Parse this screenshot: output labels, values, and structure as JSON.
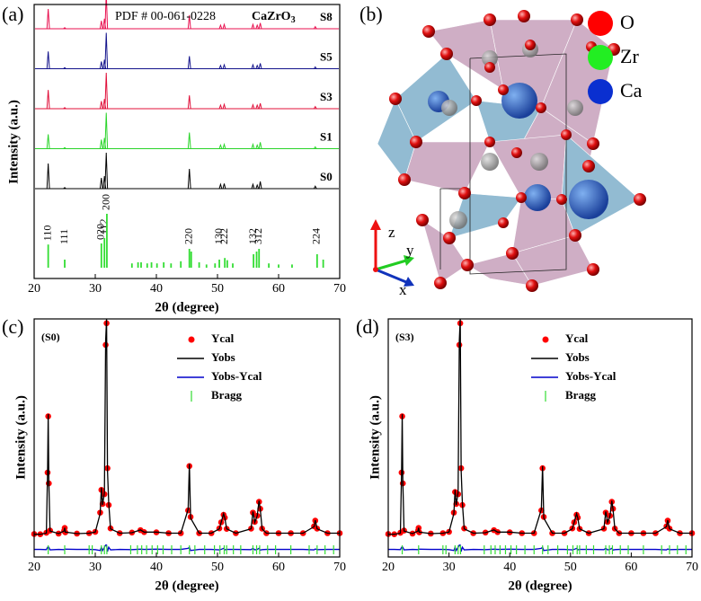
{
  "chart_data": [
    {
      "type": "stick",
      "label": "(a)",
      "annotation": "PDF # 00-061-0228",
      "formula": {
        "text": "CaZrO",
        "sub": "3"
      },
      "xlabel": "2θ (degree)",
      "ylabel": "Intensity (a.u.)",
      "xlim": [
        20,
        70
      ],
      "xticks": [
        20,
        30,
        40,
        50,
        60,
        70
      ],
      "x": [
        22.3,
        25.0,
        31.0,
        31.5,
        31.8,
        45.4,
        50.5,
        51.1,
        55.8,
        56.5,
        57.0,
        66.0
      ],
      "series": [
        {
          "name": "S8",
          "color": "#e8104f",
          "values": [
            55,
            3,
            22,
            28,
            100,
            38,
            10,
            12,
            12,
            10,
            16,
            6
          ]
        },
        {
          "name": "S5",
          "color": "#14148c",
          "values": [
            48,
            3,
            20,
            25,
            100,
            35,
            9,
            11,
            11,
            9,
            15,
            5
          ]
        },
        {
          "name": "S3",
          "color": "#e0103a",
          "values": [
            52,
            3,
            21,
            27,
            100,
            37,
            10,
            12,
            11,
            10,
            15,
            6
          ]
        },
        {
          "name": "S1",
          "color": "#2bd42b",
          "values": [
            40,
            3,
            25,
            30,
            100,
            45,
            10,
            12,
            12,
            10,
            18,
            5
          ]
        },
        {
          "name": "S0",
          "color": "#000000",
          "values": [
            70,
            3,
            30,
            35,
            100,
            55,
            12,
            14,
            12,
            10,
            20,
            7
          ]
        }
      ],
      "reference": {
        "color": "#33dd33",
        "x": [
          22.3,
          25.0,
          31.0,
          31.5,
          31.9,
          36.0,
          37.0,
          37.5,
          38.5,
          39.2,
          40.1,
          41.2,
          42.4,
          44.0,
          45.4,
          45.7,
          47.0,
          48.2,
          49.6,
          50.3,
          51.2,
          51.6,
          52.5,
          55.9,
          56.4,
          56.8,
          58.4,
          60.0,
          62.2,
          66.3,
          67.3
        ],
        "values": [
          43,
          15,
          45,
          55,
          100,
          8,
          10,
          10,
          8,
          10,
          8,
          10,
          8,
          12,
          35,
          30,
          10,
          6,
          8,
          15,
          18,
          14,
          8,
          25,
          30,
          35,
          8,
          6,
          6,
          25,
          15
        ],
        "labels": [
          "110",
          "111",
          "020",
          "112",
          "200",
          null,
          null,
          null,
          null,
          null,
          null,
          null,
          null,
          null,
          "220",
          null,
          null,
          null,
          null,
          "130",
          "222",
          null,
          null,
          "132",
          null,
          "312",
          null,
          null,
          null,
          "224",
          null
        ]
      }
    },
    {
      "type": "rietveld",
      "label": "(c)",
      "sample": "(S0)",
      "xlabel": "2θ (degree)",
      "ylabel": "Intensity (a.u.)",
      "xlim": [
        20,
        70
      ],
      "xticks": [
        20,
        30,
        40,
        50,
        60,
        70
      ],
      "ylim": [
        -10,
        100
      ],
      "x": [
        20,
        21,
        22,
        22.2,
        22.3,
        22.4,
        22.6,
        24,
        24.9,
        25,
        25.1,
        27,
        29,
        30,
        30.8,
        31.0,
        31.2,
        31.5,
        31.7,
        31.85,
        32.0,
        32.2,
        32.5,
        34,
        36,
        37.4,
        38,
        40,
        42,
        44,
        45.2,
        45.4,
        45.6,
        47,
        49,
        50.3,
        50.6,
        51.0,
        51.2,
        51.5,
        53,
        55.5,
        55.8,
        56.1,
        56.5,
        56.8,
        57.0,
        57.3,
        58,
        60,
        62,
        64,
        65.8,
        66.0,
        66.3,
        68,
        70
      ],
      "series": [
        {
          "name": "Ycal",
          "color": "#ff0000",
          "values": [
            0.6,
            0.5,
            1.2,
            29,
            55,
            24,
            2.2,
            0.8,
            2.1,
            3.4,
            1.4,
            0.8,
            1,
            1.6,
            10.5,
            21,
            14.5,
            19,
            88,
            98,
            31,
            14,
            3.2,
            1,
            1.3,
            2.4,
            1.5,
            1.4,
            1,
            1,
            11.5,
            32,
            8.5,
            1,
            1,
            3.2,
            6,
            9.5,
            8.2,
            3,
            1,
            3.1,
            10.5,
            6.2,
            9,
            15.5,
            12.3,
            3.1,
            1,
            1,
            1,
            1,
            4.2,
            6.8,
            3.1,
            1,
            1
          ]
        },
        {
          "name": "Yobs",
          "color": "#000000",
          "values": [
            0.5,
            0.5,
            1,
            30,
            56,
            25,
            2,
            0.8,
            2,
            3.5,
            1.5,
            0.8,
            1,
            1.5,
            10,
            22,
            14,
            20,
            90,
            100,
            30,
            15,
            3,
            1,
            1.2,
            2.5,
            1.5,
            1.5,
            1,
            1,
            12,
            33,
            8,
            1,
            1,
            3,
            6,
            10,
            8,
            3,
            1,
            3,
            11,
            6,
            9,
            16,
            12,
            3,
            1,
            1,
            1,
            1,
            4,
            7,
            3,
            1,
            1
          ]
        },
        {
          "name": "Yobs-Ycal",
          "color": "#0000cc",
          "values": [
            -6.5,
            -6.5,
            -6.6,
            -5.5,
            -5.5,
            -5.5,
            -6.7,
            -6.5,
            -6.6,
            -6.4,
            -6.4,
            -6.5,
            -6.5,
            -6.6,
            -7,
            -5.5,
            -7,
            -5.5,
            -4.5,
            -4.5,
            -7.5,
            -5.5,
            -6.7,
            -6.5,
            -6.6,
            -6.4,
            -6.5,
            -6.4,
            -6.5,
            -6.5,
            -6,
            -5.5,
            -7,
            -6.5,
            -6.5,
            -6.7,
            -6.5,
            -6,
            -6.7,
            -6.5,
            -6.5,
            -6.6,
            -6,
            -6.7,
            -6.5,
            -6,
            -6.8,
            -6.6,
            -6.5,
            -6.5,
            -6.5,
            -6.5,
            -6.7,
            -6.3,
            -6.6,
            -6.5,
            -6.5
          ]
        },
        {
          "name": "Bragg",
          "color": "#33dd33",
          "x": [
            22.3,
            25.0,
            29.0,
            29.5,
            31.0,
            31.5,
            31.9,
            35.8,
            36.9,
            37.6,
            38.4,
            39.3,
            40.2,
            41.1,
            42.5,
            44.0,
            45.4,
            46.3,
            47.9,
            49.5,
            50.4,
            51.1,
            51.5,
            52.6,
            53.8,
            55.8,
            56.4,
            56.9,
            58.2,
            59.5,
            62.0,
            65.0,
            66.3,
            67.6,
            69.0
          ]
        }
      ]
    },
    {
      "type": "rietveld",
      "label": "(d)",
      "sample": "(S3)",
      "xlabel": "2θ (degree)",
      "ylabel": "Intensity (a.u.)",
      "xlim": [
        20,
        70
      ],
      "xticks": [
        20,
        30,
        40,
        50,
        60,
        70
      ],
      "ylim": [
        -10,
        100
      ],
      "x": [
        20,
        21,
        22,
        22.2,
        22.3,
        22.4,
        22.6,
        24,
        24.9,
        25,
        25.1,
        27,
        29,
        30,
        30.8,
        31.0,
        31.2,
        31.5,
        31.7,
        31.85,
        32.0,
        32.2,
        32.5,
        34,
        36,
        37.4,
        38,
        40,
        42,
        44,
        45.2,
        45.4,
        45.6,
        47,
        49,
        50.3,
        50.6,
        51.0,
        51.2,
        51.5,
        53,
        55.5,
        55.8,
        56.1,
        56.5,
        56.8,
        57.0,
        57.3,
        58,
        60,
        62,
        64,
        65.8,
        66.0,
        66.3,
        68,
        70
      ],
      "series": [
        {
          "name": "Ycal",
          "color": "#ff0000",
          "values": [
            0.6,
            0.5,
            1.2,
            29,
            55,
            24,
            2.2,
            0.8,
            2.1,
            3.4,
            1.4,
            0.8,
            1,
            1.6,
            10.5,
            20,
            14.5,
            19,
            88,
            98,
            31,
            14,
            3.2,
            1,
            1.3,
            2.4,
            1.5,
            1.4,
            1,
            1,
            11.5,
            31,
            8.5,
            1,
            1,
            3.2,
            6,
            9.5,
            8.2,
            3,
            1,
            3.1,
            10.5,
            6.2,
            9,
            15.5,
            12.3,
            3.1,
            1,
            1,
            1,
            1,
            4.2,
            6.8,
            3.1,
            1,
            1
          ]
        },
        {
          "name": "Yobs",
          "color": "#000000",
          "values": [
            0.5,
            0.5,
            1,
            30,
            56,
            25,
            2,
            0.8,
            2,
            3.5,
            1.5,
            0.8,
            1,
            1.5,
            10,
            21,
            14,
            20,
            90,
            100,
            30,
            15,
            3,
            1,
            1.2,
            2.5,
            1.5,
            1.5,
            1,
            1,
            12,
            32,
            8,
            1,
            1,
            3,
            6,
            10,
            8,
            3,
            1,
            3,
            11,
            6,
            9,
            16,
            12,
            3,
            1,
            1,
            1,
            1,
            4,
            7,
            3,
            1,
            1
          ]
        },
        {
          "name": "Yobs-Ycal",
          "color": "#0000cc",
          "values": [
            -6.5,
            -6.5,
            -6.6,
            -5.5,
            -5.5,
            -5.5,
            -6.7,
            -6.5,
            -6.6,
            -6.4,
            -6.4,
            -6.5,
            -6.5,
            -6.6,
            -7,
            -5.5,
            -7,
            -5.5,
            -4.5,
            -4.5,
            -7.5,
            -5.5,
            -6.7,
            -6.5,
            -6.6,
            -6.4,
            -6.5,
            -6.4,
            -6.5,
            -6.5,
            -6,
            -5.5,
            -7,
            -6.5,
            -6.5,
            -6.7,
            -6.5,
            -6,
            -6.7,
            -6.5,
            -6.5,
            -6.6,
            -6,
            -6.7,
            -6.5,
            -6,
            -6.8,
            -6.6,
            -6.5,
            -6.5,
            -6.5,
            -6.5,
            -6.7,
            -6.3,
            -6.6,
            -6.5,
            -6.5
          ]
        },
        {
          "name": "Bragg",
          "color": "#33dd33",
          "x": [
            22.3,
            25.0,
            29.0,
            29.5,
            31.0,
            31.5,
            31.9,
            35.8,
            36.9,
            37.6,
            38.4,
            39.3,
            40.2,
            41.1,
            42.5,
            44.0,
            45.4,
            46.3,
            47.9,
            49.5,
            50.4,
            51.1,
            51.5,
            52.6,
            53.8,
            55.8,
            56.4,
            56.9,
            58.2,
            59.5,
            62.0,
            65.0,
            66.3,
            67.6,
            69.0
          ]
        }
      ]
    }
  ],
  "structure": {
    "label": "(b)",
    "legend": [
      {
        "name": "O",
        "color": "#ff0000"
      },
      {
        "name": "Zr",
        "color": "#22ee22"
      },
      {
        "name": "Ca",
        "color": "#0a2fd0"
      }
    ],
    "axes": {
      "z": "z",
      "y": "y",
      "x": "x"
    }
  }
}
